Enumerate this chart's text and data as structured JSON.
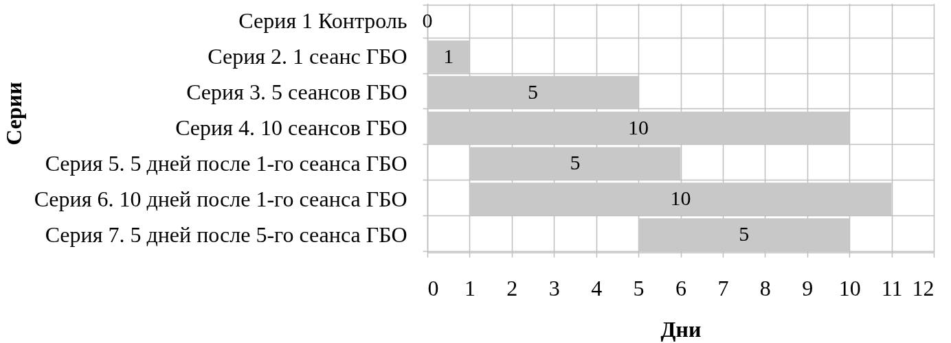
{
  "chart_data": {
    "type": "bar",
    "orientation": "horizontal",
    "xlabel": "Дни",
    "ylabel": "Серии",
    "categories": [
      "Серия 1 Контроль",
      "Серия 2. 1 сеанс ГБО",
      "Серия 3. 5 сеансов ГБО",
      "Серия 4. 10 сеансов ГБО",
      "Серия 5. 5 дней после 1-го сеанса ГБО",
      "Серия 6. 10 дней после 1-го сеанса ГБО",
      "Серия 7. 5 дней после 5-го сеанса ГБО"
    ],
    "base": [
      null,
      0,
      0,
      0,
      1,
      1,
      5
    ],
    "values": [
      0,
      1,
      5,
      10,
      5,
      10,
      5
    ],
    "color": "#c8c8c8",
    "xlim": [
      0,
      12
    ],
    "xticks": [
      0,
      1,
      2,
      3,
      4,
      5,
      6,
      7,
      8,
      9,
      10,
      11,
      12
    ],
    "grid": true,
    "data_labels": true
  }
}
